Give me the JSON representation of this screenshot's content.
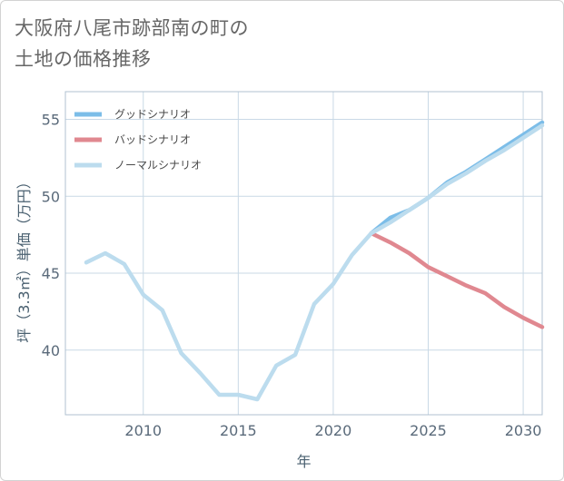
{
  "title": {
    "line1": "大阪府八尾市跡部南の町の",
    "line2": "土地の価格推移"
  },
  "colors": {
    "good": "#7cbde8",
    "bad": "#e08890",
    "normal": "#bcdcee",
    "grid": "#c9d9e6",
    "axis": "#b0c2d0"
  },
  "chart_data": {
    "type": "line",
    "xlabel": "年",
    "ylabel": "坪（3.3㎡）単価（万円）",
    "xlim": [
      2005.9,
      2031
    ],
    "ylim": [
      35.8,
      56.8
    ],
    "xticks": [
      2010,
      2015,
      2020,
      2025,
      2030
    ],
    "yticks": [
      40,
      45,
      50,
      55
    ],
    "grid": true,
    "legend_position": "top-left",
    "series": [
      {
        "name": "グッドシナリオ",
        "color_key": "good",
        "x": [
          2022,
          2023,
          2024,
          2025,
          2026,
          2027,
          2028,
          2029,
          2030,
          2031
        ],
        "y": [
          47.6,
          48.6,
          49.1,
          49.9,
          50.9,
          51.6,
          52.4,
          53.2,
          54.0,
          54.8
        ]
      },
      {
        "name": "バッドシナリオ",
        "color_key": "bad",
        "x": [
          2022,
          2023,
          2024,
          2025,
          2026,
          2027,
          2028,
          2029,
          2030,
          2031
        ],
        "y": [
          47.6,
          47.0,
          46.3,
          45.4,
          44.8,
          44.2,
          43.7,
          42.8,
          42.1,
          41.5
        ]
      },
      {
        "name": "ノーマルシナリオ",
        "color_key": "normal",
        "x": [
          2007,
          2008,
          2009,
          2010,
          2011,
          2012,
          2013,
          2014,
          2015,
          2016,
          2017,
          2018,
          2019,
          2020,
          2021,
          2022,
          2023,
          2024,
          2025,
          2026,
          2027,
          2028,
          2029,
          2030,
          2031
        ],
        "y": [
          45.7,
          46.3,
          45.6,
          43.6,
          42.6,
          39.8,
          38.5,
          37.1,
          37.1,
          36.8,
          39.0,
          39.7,
          43.0,
          44.3,
          46.2,
          47.6,
          48.3,
          49.1,
          49.9,
          50.8,
          51.5,
          52.3,
          53.0,
          53.8,
          54.6
        ]
      }
    ]
  }
}
